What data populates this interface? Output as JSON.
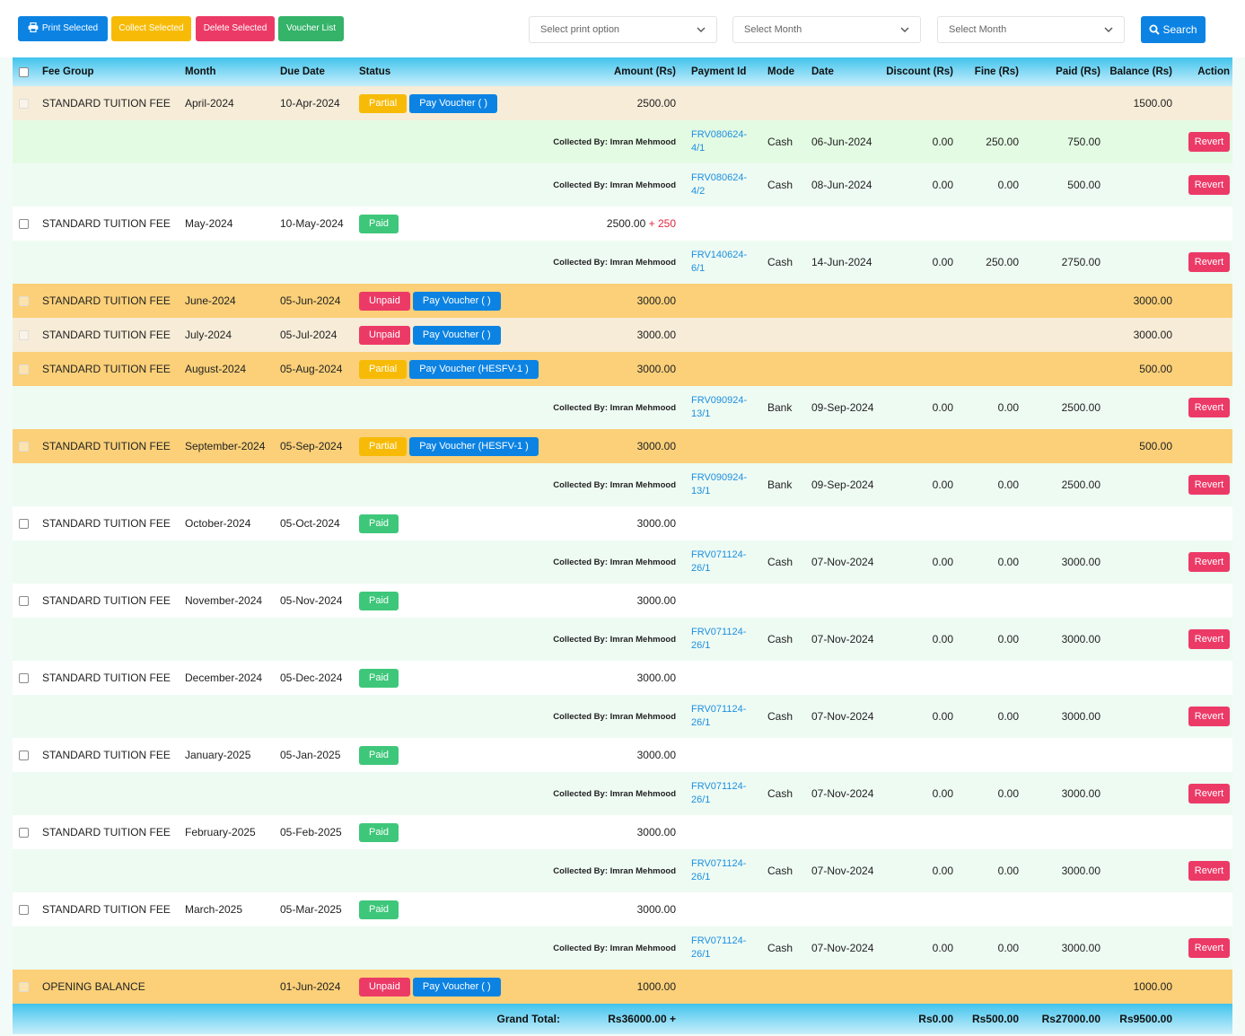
{
  "toolbar": {
    "print_selected": "Print Selected",
    "collect_selected": "Collect Selected",
    "delete_selected": "Delete Selected",
    "voucher_list": "Voucher List",
    "print_option_placeholder": "Select print option",
    "month_select_1": "Select Month",
    "month_select_2": "Select Month",
    "search": "Search"
  },
  "colors": {
    "primary": "#0c83e3",
    "warning": "#f7bb07",
    "danger": "#ec3a67",
    "success": "#34b369",
    "header_gradient": "#40c3ec",
    "row_orange": "#fbd079",
    "row_beige": "#f7ecd7",
    "row_mint": "#eefbf3"
  },
  "headers": {
    "fee_group": "Fee Group",
    "month": "Month",
    "due_date": "Due Date",
    "status": "Status",
    "amount": "Amount (Rs)",
    "payment_id": "Payment Id",
    "mode": "Mode",
    "date": "Date",
    "discount": "Discount (Rs)",
    "fine": "Fine (Rs)",
    "paid": "Paid (Rs)",
    "balance": "Balance (Rs)",
    "action": "Action"
  },
  "labels": {
    "collected_by_prefix": "Collected By:",
    "revert": "Revert",
    "grand_total": "Grand Total:"
  },
  "rows": [
    {
      "kind": "fee",
      "bg": "beige",
      "fee_group": "STANDARD TUITION FEE",
      "month": "April-2024",
      "due": "10-Apr-2024",
      "status": "Partial",
      "voucher": "Pay Voucher ( )",
      "amount": "2500.00",
      "balance": "1500.00"
    },
    {
      "kind": "pay",
      "bg": "lightgreen",
      "collected": "Collected By: Imran Mehmood",
      "pid1": "FRV080624-",
      "pid2": "4/1",
      "mode": "Cash",
      "date": "06-Jun-2024",
      "discount": "0.00",
      "fine": "250.00",
      "paid": "750.00"
    },
    {
      "kind": "pay",
      "bg": "mint",
      "collected": "Collected By: Imran Mehmood",
      "pid1": "FRV080624-",
      "pid2": "4/2",
      "mode": "Cash",
      "date": "08-Jun-2024",
      "discount": "0.00",
      "fine": "0.00",
      "paid": "500.00"
    },
    {
      "kind": "fee",
      "bg": "white",
      "checkbox": "visible",
      "fee_group": "STANDARD TUITION FEE",
      "month": "May-2024",
      "due": "10-May-2024",
      "status": "Paid",
      "amount": "2500.00",
      "amount_extra": "+ 250"
    },
    {
      "kind": "pay",
      "bg": "mint",
      "collected": "Collected By: Imran Mehmood",
      "pid1": "FRV140624-",
      "pid2": "6/1",
      "mode": "Cash",
      "date": "14-Jun-2024",
      "discount": "0.00",
      "fine": "250.00",
      "paid": "2750.00"
    },
    {
      "kind": "fee",
      "bg": "orange",
      "fee_group": "STANDARD TUITION FEE",
      "month": "June-2024",
      "due": "05-Jun-2024",
      "status": "Unpaid",
      "voucher": "Pay Voucher ( )",
      "amount": "3000.00",
      "balance": "3000.00"
    },
    {
      "kind": "fee",
      "bg": "beige",
      "fee_group": "STANDARD TUITION FEE",
      "month": "July-2024",
      "due": "05-Jul-2024",
      "status": "Unpaid",
      "voucher": "Pay Voucher ( )",
      "amount": "3000.00",
      "balance": "3000.00"
    },
    {
      "kind": "fee",
      "bg": "orange",
      "fee_group": "STANDARD TUITION FEE",
      "month": "August-2024",
      "due": "05-Aug-2024",
      "status": "Partial",
      "voucher": "Pay Voucher (HESFV-1 )",
      "amount": "3000.00",
      "balance": "500.00"
    },
    {
      "kind": "pay",
      "bg": "mint",
      "collected": "Collected By: Imran Mehmood",
      "pid1": "FRV090924-",
      "pid2": "13/1",
      "mode": "Bank",
      "date": "09-Sep-2024",
      "discount": "0.00",
      "fine": "0.00",
      "paid": "2500.00"
    },
    {
      "kind": "fee",
      "bg": "orange",
      "fee_group": "STANDARD TUITION FEE",
      "month": "September-2024",
      "due": "05-Sep-2024",
      "status": "Partial",
      "voucher": "Pay Voucher (HESFV-1 )",
      "amount": "3000.00",
      "balance": "500.00"
    },
    {
      "kind": "pay",
      "bg": "mint",
      "collected": "Collected By: Imran Mehmood",
      "pid1": "FRV090924-",
      "pid2": "13/1",
      "mode": "Bank",
      "date": "09-Sep-2024",
      "discount": "0.00",
      "fine": "0.00",
      "paid": "2500.00"
    },
    {
      "kind": "fee",
      "bg": "white",
      "checkbox": "visible",
      "fee_group": "STANDARD TUITION FEE",
      "month": "October-2024",
      "due": "05-Oct-2024",
      "status": "Paid",
      "amount": "3000.00"
    },
    {
      "kind": "pay",
      "bg": "mint",
      "collected": "Collected By: Imran Mehmood",
      "pid1": "FRV071124-",
      "pid2": "26/1",
      "mode": "Cash",
      "date": "07-Nov-2024",
      "discount": "0.00",
      "fine": "0.00",
      "paid": "3000.00"
    },
    {
      "kind": "fee",
      "bg": "white",
      "checkbox": "visible",
      "fee_group": "STANDARD TUITION FEE",
      "month": "November-2024",
      "due": "05-Nov-2024",
      "status": "Paid",
      "amount": "3000.00"
    },
    {
      "kind": "pay",
      "bg": "mint",
      "collected": "Collected By: Imran Mehmood",
      "pid1": "FRV071124-",
      "pid2": "26/1",
      "mode": "Cash",
      "date": "07-Nov-2024",
      "discount": "0.00",
      "fine": "0.00",
      "paid": "3000.00"
    },
    {
      "kind": "fee",
      "bg": "white",
      "checkbox": "visible",
      "fee_group": "STANDARD TUITION FEE",
      "month": "December-2024",
      "due": "05-Dec-2024",
      "status": "Paid",
      "amount": "3000.00"
    },
    {
      "kind": "pay",
      "bg": "mint",
      "collected": "Collected By: Imran Mehmood",
      "pid1": "FRV071124-",
      "pid2": "26/1",
      "mode": "Cash",
      "date": "07-Nov-2024",
      "discount": "0.00",
      "fine": "0.00",
      "paid": "3000.00"
    },
    {
      "kind": "fee",
      "bg": "white",
      "checkbox": "visible",
      "fee_group": "STANDARD TUITION FEE",
      "month": "January-2025",
      "due": "05-Jan-2025",
      "status": "Paid",
      "amount": "3000.00"
    },
    {
      "kind": "pay",
      "bg": "mint",
      "collected": "Collected By: Imran Mehmood",
      "pid1": "FRV071124-",
      "pid2": "26/1",
      "mode": "Cash",
      "date": "07-Nov-2024",
      "discount": "0.00",
      "fine": "0.00",
      "paid": "3000.00"
    },
    {
      "kind": "fee",
      "bg": "white",
      "checkbox": "visible",
      "fee_group": "STANDARD TUITION FEE",
      "month": "February-2025",
      "due": "05-Feb-2025",
      "status": "Paid",
      "amount": "3000.00"
    },
    {
      "kind": "pay",
      "bg": "mint",
      "collected": "Collected By: Imran Mehmood",
      "pid1": "FRV071124-",
      "pid2": "26/1",
      "mode": "Cash",
      "date": "07-Nov-2024",
      "discount": "0.00",
      "fine": "0.00",
      "paid": "3000.00"
    },
    {
      "kind": "fee",
      "bg": "white",
      "checkbox": "visible",
      "fee_group": "STANDARD TUITION FEE",
      "month": "March-2025",
      "due": "05-Mar-2025",
      "status": "Paid",
      "amount": "3000.00"
    },
    {
      "kind": "pay",
      "bg": "mint",
      "collected": "Collected By: Imran Mehmood",
      "pid1": "FRV071124-",
      "pid2": "26/1",
      "mode": "Cash",
      "date": "07-Nov-2024",
      "discount": "0.00",
      "fine": "0.00",
      "paid": "3000.00"
    },
    {
      "kind": "fee",
      "bg": "orange",
      "fee_group": "OPENING BALANCE",
      "month": "",
      "due": "01-Jun-2024",
      "status": "Unpaid",
      "voucher": "Pay Voucher ( )",
      "amount": "1000.00",
      "balance": "1000.00"
    }
  ],
  "totals": {
    "amount": "Rs36000.00 +",
    "discount": "Rs0.00",
    "fine": "Rs500.00",
    "paid": "Rs27000.00",
    "balance": "Rs9500.00"
  }
}
